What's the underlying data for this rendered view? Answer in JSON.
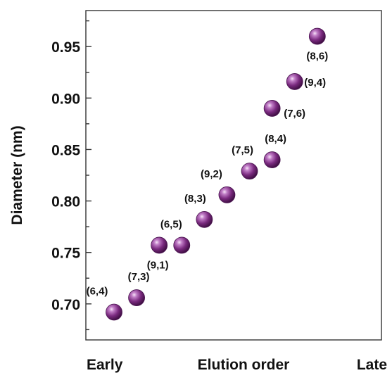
{
  "chart_data": {
    "type": "scatter",
    "title": "",
    "xlabel": "Elution order",
    "x_start_label": "Early",
    "x_end_label": "Late",
    "ylabel": "Diameter (nm)",
    "ylim": [
      0.665,
      0.985
    ],
    "yticks": [
      0.7,
      0.75,
      0.8,
      0.85,
      0.9,
      0.95
    ],
    "ytick_labels": [
      "0.70",
      "0.75",
      "0.80",
      "0.85",
      "0.90",
      "0.95"
    ],
    "x_order": [
      1,
      12
    ],
    "grid": false,
    "legend": "none",
    "marker_color": "#7a2a7f",
    "points": [
      {
        "label": "(6,4)",
        "x": 1,
        "y": 0.692
      },
      {
        "label": "(7,3)",
        "x": 2,
        "y": 0.706
      },
      {
        "label": "(9,1)",
        "x": 3,
        "y": 0.757
      },
      {
        "label": "(6,5)",
        "x": 4,
        "y": 0.757
      },
      {
        "label": "(8,3)",
        "x": 5,
        "y": 0.782
      },
      {
        "label": "(9,2)",
        "x": 6,
        "y": 0.806
      },
      {
        "label": "(7,5)",
        "x": 7,
        "y": 0.829
      },
      {
        "label": "(8,4)",
        "x": 8,
        "y": 0.84
      },
      {
        "label": "(7,6)",
        "x": 8,
        "y": 0.89
      },
      {
        "label": "(9,4)",
        "x": 9,
        "y": 0.916
      },
      {
        "label": "(8,6)",
        "x": 10,
        "y": 0.96
      }
    ]
  }
}
